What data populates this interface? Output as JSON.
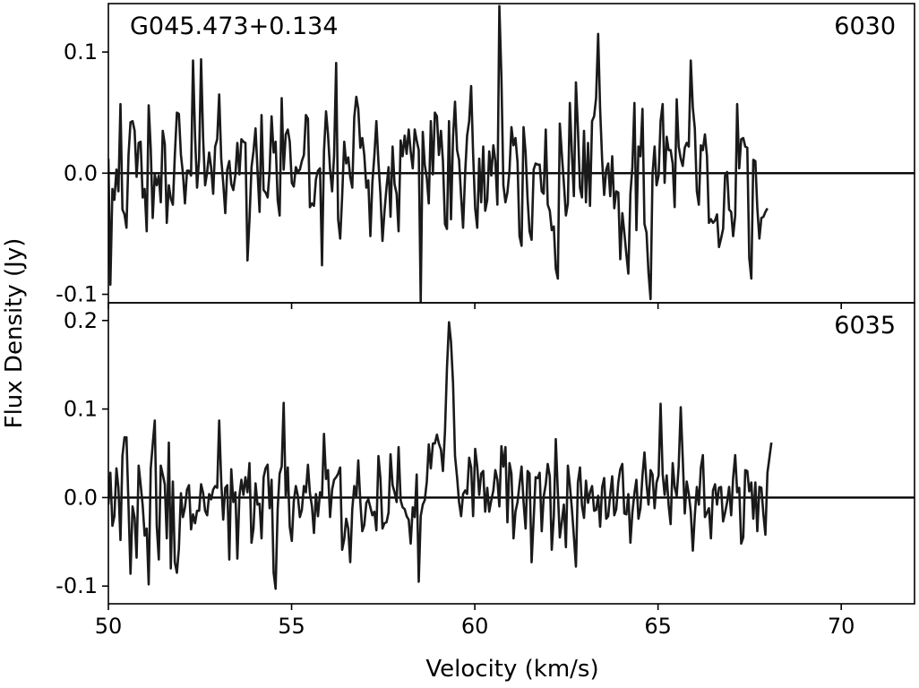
{
  "chart_data": {
    "type": "line",
    "xlabel": "Velocity (km/s)",
    "ylabel": "Flux Density (Jy)",
    "xlim": [
      50,
      72
    ],
    "x_ticks": [
      {
        "value": 50,
        "label": "50"
      },
      {
        "value": 55,
        "label": "55"
      },
      {
        "value": 60,
        "label": "60"
      },
      {
        "value": 65,
        "label": "65"
      },
      {
        "value": 70,
        "label": "70"
      }
    ],
    "line_color": "#1a1a1a",
    "panels": [
      {
        "source_label": "G045.473+0.134",
        "panel_label": "6030",
        "ylim": [
          -0.107,
          0.14
        ],
        "y_ticks": [
          {
            "value": 0.1,
            "label": "0.1"
          },
          {
            "value": 0.0,
            "label": "0.0"
          },
          {
            "value": -0.1,
            "label": "-0.1"
          }
        ],
        "baseline": 0.0,
        "series": [
          {
            "x_start": 50.0,
            "x_step": 0.055,
            "values": [
              0.012,
              -0.092,
              -0.013,
              -0.022,
              0.003,
              -0.015,
              0.057,
              -0.03,
              -0.034,
              -0.045,
              0.015,
              0.042,
              0.043,
              0.035,
              -0.003,
              0.025,
              0.026,
              -0.02,
              -0.013,
              -0.048,
              0.056,
              0.02,
              -0.037,
              -0.001,
              -0.01,
              -0.002,
              -0.024,
              0.035,
              0.024,
              -0.041,
              -0.01,
              -0.021,
              -0.026,
              0.015,
              0.05,
              0.049,
              0.015,
              0.0,
              -0.025,
              0.002,
              0.002,
              -0.002,
              0.093,
              0.03,
              -0.012,
              0.012,
              0.094,
              0.028,
              -0.01,
              0.001,
              0.017,
              0.005,
              -0.017,
              0.022,
              0.028,
              0.065,
              0.012,
              -0.008,
              -0.033,
              0.003,
              0.01,
              -0.009,
              -0.014,
              -0.001,
              0.025,
              -0.001,
              0.028,
              0.026,
              0.025,
              -0.072,
              -0.039,
              0.005,
              0.018,
              0.037,
              0.002,
              -0.032,
              0.048,
              -0.014,
              -0.016,
              -0.02,
              0.002,
              0.047,
              0.017,
              0.026,
              -0.022,
              -0.035,
              0.062,
              0.003,
              0.032,
              0.036,
              0.026,
              -0.008,
              -0.011,
              0.005,
              0.001,
              0.003,
              0.01,
              0.015,
              0.048,
              0.045,
              -0.028,
              -0.025,
              -0.027,
              -0.005,
              0.002,
              0.004,
              -0.076,
              0.018,
              0.051,
              0.032,
              0.003,
              -0.015,
              0.015,
              0.091,
              -0.038,
              -0.054,
              -0.019,
              0.026,
              0.008,
              0.013,
              -0.003,
              -0.012,
              0.046,
              0.063,
              0.053,
              0.021,
              0.029,
              0.015,
              -0.012,
              -0.006,
              -0.052,
              -0.008,
              0.015,
              0.043,
              0.009,
              -0.017,
              -0.056,
              -0.032,
              -0.012,
              0.005,
              -0.036,
              0.022,
              -0.009,
              -0.017,
              -0.048,
              0.027,
              0.014,
              0.031,
              0.016,
              0.036,
              0.018,
              0.004,
              0.036,
              0.027,
              0.019,
              -0.106,
              0.034,
              0.007,
              -0.004,
              -0.025,
              0.043,
              -0.001,
              0.05,
              0.047,
              0.015,
              0.035,
              0.01,
              -0.042,
              -0.046,
              0.043,
              -0.038,
              0.03,
              0.059,
              0.019,
              0.011,
              -0.019,
              -0.045,
              0.0,
              0.031,
              0.043,
              0.072,
              0.016,
              -0.029,
              -0.045,
              0.012,
              -0.024,
              0.022,
              -0.031,
              -0.022,
              0.018,
              -0.002,
              0.023,
              0.01,
              -0.026,
              0.138,
              0.079,
              -0.01,
              -0.024,
              -0.016,
              0.002,
              0.038,
              0.023,
              0.029,
              0.009,
              -0.052,
              -0.06,
              0.038,
              0.017,
              -0.021,
              -0.048,
              -0.055,
              0.003,
              0.008,
              0.007,
              0.007,
              -0.015,
              -0.017,
              0.036,
              -0.026,
              -0.031,
              -0.047,
              -0.044,
              -0.079,
              -0.087,
              0.041,
              0.015,
              -0.008,
              -0.035,
              -0.025,
              0.058,
              0.016,
              -0.019,
              0.075,
              0.037,
              -0.012,
              -0.02,
              0.035,
              -0.024,
              0.025,
              -0.027,
              0.043,
              0.047,
              0.062,
              0.115,
              0.053,
              0.01,
              -0.018,
              0.003,
              0.008,
              -0.019,
              0.014,
              -0.029,
              -0.015,
              -0.016,
              -0.071,
              -0.033,
              -0.049,
              -0.067,
              -0.083,
              -0.017,
              0.005,
              0.058,
              -0.047,
              0.022,
              0.014,
              0.053,
              -0.042,
              -0.049,
              -0.082,
              -0.104,
              -0.001,
              0.022,
              -0.01,
              -0.002,
              0.043,
              0.057,
              -0.008,
              0.03,
              0.019,
              0.019,
              0.008,
              -0.028,
              0.061,
              0.022,
              0.012,
              0.006,
              0.021,
              0.025,
              0.022,
              0.093,
              0.054,
              0.037,
              -0.015,
              -0.026,
              0.023,
              0.019,
              0.032,
              0.014,
              -0.041,
              -0.038,
              -0.041,
              -0.039,
              -0.034,
              -0.061,
              -0.054,
              -0.046,
              -0.002,
              0.001,
              -0.03,
              -0.032,
              -0.052,
              -0.035,
              0.057,
              0.004,
              0.028,
              0.029,
              0.022,
              0.021,
              -0.07,
              -0.087,
              0.011,
              0.01,
              -0.029,
              -0.054,
              -0.037,
              -0.036,
              -0.032,
              -0.029
            ]
          }
        ]
      },
      {
        "panel_label": "6035",
        "ylim": [
          -0.12,
          0.22
        ],
        "y_ticks": [
          {
            "value": 0.2,
            "label": "0.2"
          },
          {
            "value": 0.1,
            "label": "0.1"
          },
          {
            "value": 0.0,
            "label": "0.0"
          },
          {
            "value": -0.1,
            "label": "-0.1"
          }
        ],
        "baseline": 0.0,
        "series": [
          {
            "x_start": 50.0,
            "x_step": 0.055,
            "values": [
              -0.008,
              0.028,
              -0.032,
              -0.021,
              0.033,
              0.011,
              -0.048,
              0.047,
              0.068,
              0.068,
              -0.01,
              -0.086,
              -0.01,
              -0.023,
              -0.068,
              0.036,
              0.015,
              -0.009,
              -0.043,
              -0.035,
              -0.098,
              0.033,
              0.06,
              0.087,
              -0.032,
              -0.07,
              0.036,
              0.026,
              0.015,
              -0.046,
              0.062,
              -0.08,
              0.018,
              -0.073,
              -0.085,
              -0.058,
              0.005,
              -0.022,
              -0.011,
              0.009,
              0.014,
              -0.036,
              -0.019,
              -0.029,
              -0.015,
              -0.015,
              0.015,
              0.005,
              -0.015,
              -0.02,
              0.004,
              -0.002,
              0.009,
              0.013,
              0.011,
              0.087,
              0.018,
              -0.025,
              0.011,
              0.014,
              -0.07,
              0.032,
              -0.005,
              0.006,
              -0.069,
              0.002,
              0.02,
              0.003,
              0.023,
              0.006,
              0.039,
              -0.051,
              -0.035,
              0.016,
              -0.008,
              -0.007,
              -0.046,
              0.023,
              0.033,
              0.037,
              -0.012,
              0.02,
              -0.085,
              -0.103,
              -0.013,
              0.027,
              0.035,
              0.107,
              0.0,
              0.034,
              -0.033,
              -0.049,
              -0.004,
              0.013,
              0.002,
              -0.022,
              -0.014,
              0.013,
              0.006,
              0.037,
              0.005,
              -0.01,
              -0.04,
              0.004,
              -0.021,
              0.006,
              0.001,
              0.072,
              0.021,
              0.031,
              -0.022,
              0.009,
              0.02,
              0.023,
              0.027,
              0.034,
              -0.059,
              -0.047,
              -0.024,
              -0.035,
              -0.073,
              -0.013,
              0.013,
              0.0,
              0.042,
              -0.005,
              -0.038,
              -0.031,
              -0.006,
              -0.002,
              -0.011,
              -0.02,
              -0.016,
              -0.037,
              0.047,
              0.022,
              -0.035,
              -0.029,
              -0.028,
              -0.017,
              0.049,
              0.014,
              0.006,
              -0.005,
              0.057,
              -0.003,
              -0.011,
              -0.013,
              -0.021,
              -0.025,
              -0.052,
              -0.011,
              -0.022,
              0.026,
              -0.095,
              -0.021,
              -0.008,
              -0.003,
              0.018,
              0.06,
              0.033,
              0.061,
              0.061,
              0.071,
              0.061,
              0.054,
              0.03,
              0.075,
              0.146,
              0.198,
              0.176,
              0.129,
              0.047,
              0.023,
              -0.005,
              -0.021,
              0.004,
              0.008,
              0.004,
              0.045,
              0.034,
              -0.021,
              0.055,
              0.035,
              0.003,
              0.027,
              0.03,
              -0.016,
              0.011,
              -0.016,
              -0.003,
              0.008,
              0.031,
              0.02,
              -0.01,
              0.058,
              0.035,
              0.057,
              -0.028,
              0.039,
              0.027,
              -0.046,
              -0.016,
              -0.005,
              0.015,
              0.035,
              -0.005,
              -0.035,
              0.03,
              0.027,
              -0.073,
              -0.024,
              0.023,
              0.022,
              0.028,
              -0.038,
              0.001,
              0.015,
              0.038,
              0.024,
              -0.059,
              -0.021,
              0.066,
              0.006,
              -0.045,
              -0.027,
              -0.008,
              -0.056,
              0.036,
              0.014,
              -0.013,
              -0.044,
              -0.078,
              0.017,
              0.034,
              -0.009,
              -0.023,
              0.019,
              -0.006,
              0.006,
              0.013,
              -0.015,
              -0.014,
              0.002,
              -0.033,
              0.012,
              0.022,
              -0.024,
              -0.021,
              0.004,
              0.024,
              -0.02,
              -0.013,
              0.017,
              0.032,
              0.038,
              -0.018,
              -0.019,
              0.004,
              -0.051,
              -0.017,
              0.005,
              0.02,
              -0.024,
              -0.012,
              0.025,
              0.051,
              0.016,
              -0.008,
              0.031,
              0.026,
              -0.012,
              0.017,
              0.025,
              0.106,
              0.027,
              0.003,
              0.025,
              -0.009,
              -0.03,
              0.039,
              0.012,
              0.002,
              0.035,
              0.102,
              0.045,
              -0.018,
              0.018,
              0.004,
              -0.016,
              -0.06,
              -0.02,
              0.012,
              -0.008,
              0.034,
              0.048,
              -0.022,
              -0.017,
              -0.012,
              -0.046,
              0.008,
              0.015,
              -0.008,
              0.011,
              0.012,
              -0.027,
              -0.017,
              -0.005,
              0.012,
              -0.02,
              0.022,
              0.048,
              0.006,
              0.011,
              -0.052,
              -0.045,
              0.031,
              0.03,
              0.007,
              0.017,
              -0.024,
              0.017,
              -0.038,
              0.012,
              0.011,
              -0.019,
              -0.042,
              0.028,
              0.045,
              0.062
            ]
          }
        ]
      }
    ]
  }
}
